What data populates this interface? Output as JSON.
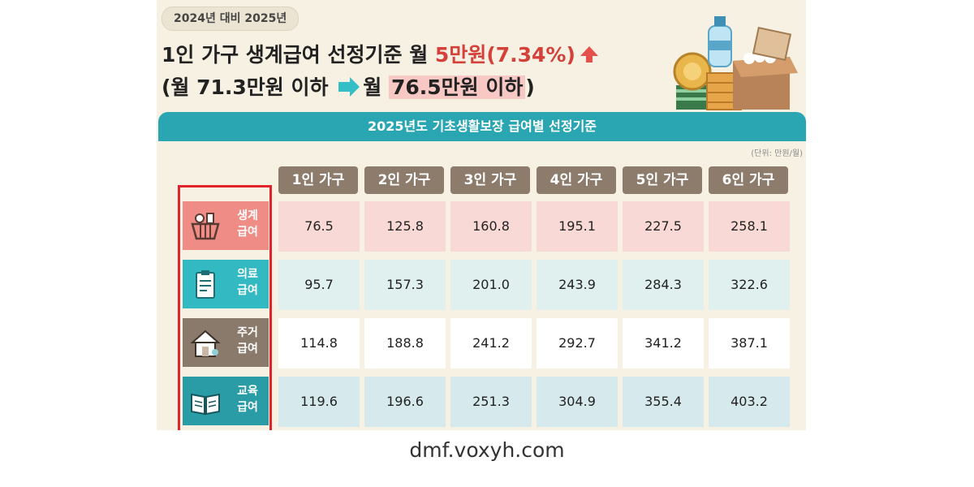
{
  "header": {
    "pill": "2024년 대비 2025년",
    "line1_prefix": "1인 가구 생계급여 선정기준 월 ",
    "line1_highlight": "5만원(7.34%)",
    "line2_before": "(월 71.3만원 이하",
    "line2_after_prefix": "월 ",
    "line2_after_highlight": "76.5만원 이하",
    "line2_close": ")"
  },
  "table": {
    "title": "2025년도 기초생활보장 급여별 선정기준",
    "unit": "(단위: 만원/월)",
    "columns": [
      "1인 가구",
      "2인 가구",
      "3인 가구",
      "4인 가구",
      "5인 가구",
      "6인 가구"
    ],
    "rows": [
      {
        "label_top": "생계",
        "label_bottom": "급여",
        "icon": "basket-icon",
        "values": [
          "76.5",
          "125.8",
          "160.8",
          "195.1",
          "227.5",
          "258.1"
        ]
      },
      {
        "label_top": "의료",
        "label_bottom": "급여",
        "icon": "clipboard-icon",
        "values": [
          "95.7",
          "157.3",
          "201.0",
          "243.9",
          "284.3",
          "322.6"
        ]
      },
      {
        "label_top": "주거",
        "label_bottom": "급여",
        "icon": "house-icon",
        "values": [
          "114.8",
          "188.8",
          "241.2",
          "292.7",
          "341.2",
          "387.1"
        ]
      },
      {
        "label_top": "교육",
        "label_bottom": "급여",
        "icon": "book-icon",
        "values": [
          "119.6",
          "196.6",
          "251.3",
          "304.9",
          "355.4",
          "403.2"
        ]
      }
    ]
  },
  "colors": {
    "banner": "#2aa6b3",
    "header_cell": "#8d7b6c",
    "row_1_label": "#f08c86",
    "row_2_label": "#33b9c1",
    "row_3_label": "#8a7a6c",
    "row_4_label": "#2a9ca6",
    "highlight_box": "#e2232b"
  },
  "footer": {
    "watermark": "dmf.voxyh.com"
  }
}
